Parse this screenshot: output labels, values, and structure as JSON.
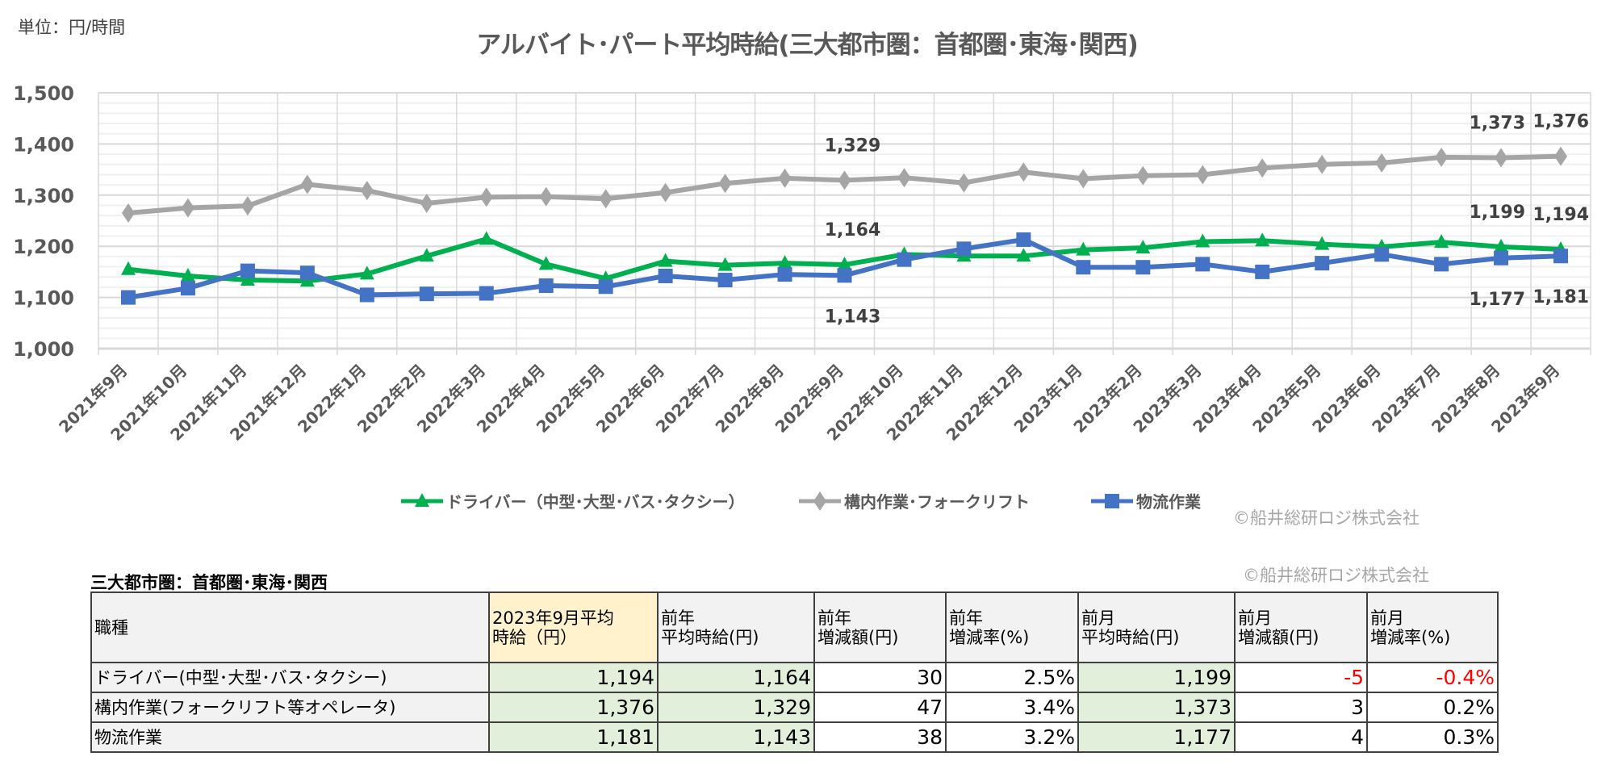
{
  "unit_label": "単位：円/時間",
  "copyright": "©船井総研ロジ株式会社",
  "chart_data": {
    "type": "line",
    "title": "アルバイト･パート平均時給(三大都市圏：首都圏･東海･関西)",
    "ylim": [
      1000,
      1500
    ],
    "yticks": [
      1000,
      1100,
      1200,
      1300,
      1400,
      1500
    ],
    "ytick_labels": [
      "1,000",
      "1,100",
      "1,200",
      "1,300",
      "1,400",
      "1,500"
    ],
    "grid": true,
    "legend_position": "bottom",
    "categories": [
      "2021年9月",
      "2021年10月",
      "2021年11月",
      "2021年12月",
      "2022年1月",
      "2022年2月",
      "2022年3月",
      "2022年4月",
      "2022年5月",
      "2022年6月",
      "2022年7月",
      "2022年8月",
      "2022年9月",
      "2022年10月",
      "2022年11月",
      "2022年12月",
      "2023年1月",
      "2023年2月",
      "2023年3月",
      "2023年4月",
      "2023年5月",
      "2023年6月",
      "2023年7月",
      "2023年8月",
      "2023年9月"
    ],
    "series": [
      {
        "name": "ドライバー（中型･大型･バス･タクシー）",
        "color": "#00b050",
        "marker": "triangle",
        "values": [
          1155,
          1142,
          1134,
          1132,
          1146,
          1181,
          1214,
          1165,
          1137,
          1171,
          1163,
          1167,
          1164,
          1184,
          1181,
          1181,
          1193,
          1197,
          1209,
          1211,
          1204,
          1199,
          1208,
          1199,
          1194
        ],
        "labels": [
          {
            "index": 12,
            "text": "1,164"
          },
          {
            "index": 23,
            "text": "1,199"
          },
          {
            "index": 24,
            "text": "1,194"
          }
        ]
      },
      {
        "name": "構内作業･フォークリフト",
        "color": "#a5a5a5",
        "marker": "diamond",
        "values": [
          1265,
          1275,
          1279,
          1321,
          1309,
          1284,
          1296,
          1297,
          1293,
          1305,
          1323,
          1333,
          1329,
          1334,
          1324,
          1345,
          1332,
          1338,
          1340,
          1353,
          1360,
          1363,
          1374,
          1373,
          1376
        ],
        "labels": [
          {
            "index": 12,
            "text": "1,329"
          },
          {
            "index": 23,
            "text": "1,373"
          },
          {
            "index": 24,
            "text": "1,376"
          }
        ]
      },
      {
        "name": "物流作業",
        "color": "#4472c4",
        "marker": "square",
        "values": [
          1100,
          1118,
          1152,
          1148,
          1105,
          1107,
          1108,
          1123,
          1121,
          1142,
          1134,
          1145,
          1143,
          1174,
          1195,
          1213,
          1159,
          1159,
          1165,
          1150,
          1167,
          1184,
          1165,
          1177,
          1181
        ],
        "labels": [
          {
            "index": 12,
            "text": "1,143"
          },
          {
            "index": 23,
            "text": "1,177"
          },
          {
            "index": 24,
            "text": "1,181"
          }
        ]
      }
    ]
  },
  "table": {
    "title": "三大都市圏：首都圏･東海･関西",
    "headers": [
      "職種",
      "2023年9月平均\n時給（円）",
      "前年\n平均時給(円)",
      "前年\n増減額(円)",
      "前年\n増減率(%)",
      "前月\n平均時給(円)",
      "前月\n増減額(円)",
      "前月\n増減率(%)"
    ],
    "rows": [
      [
        "ドライバー(中型･大型･バス･タクシー)",
        "1,194",
        "1,164",
        "30",
        "2.5%",
        "1,199",
        "-5",
        "-0.4%"
      ],
      [
        "構内作業(フォークリフト等オペレータ)",
        "1,376",
        "1,329",
        "47",
        "3.4%",
        "1,373",
        "3",
        "0.2%"
      ],
      [
        "物流作業",
        "1,181",
        "1,143",
        "38",
        "3.2%",
        "1,177",
        "4",
        "0.3%"
      ]
    ],
    "negative_color": "#ff0000"
  }
}
